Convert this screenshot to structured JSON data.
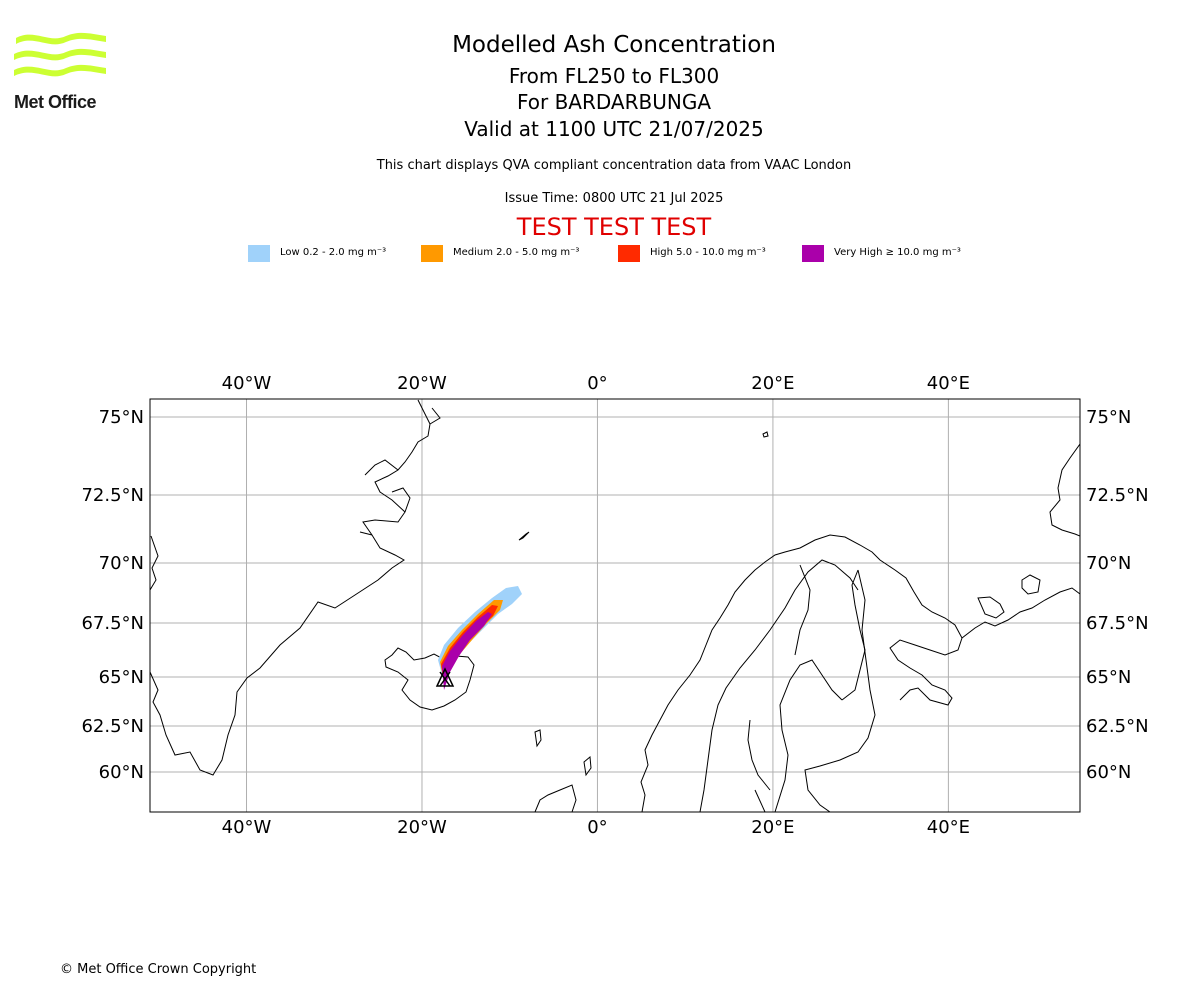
{
  "header": {
    "logo_text": "Met Office",
    "title": "Modelled Ash Concentration",
    "line2": "From FL250 to FL300",
    "line3": "For BARDARBUNGA",
    "line4": "Valid at 1100 UTC 21/07/2025",
    "description": "This chart displays QVA compliant concentration data from VAAC London",
    "issue_time": "Issue Time: 0800 UTC 21 Jul 2025",
    "test_banner": "TEST TEST TEST"
  },
  "colors": {
    "logo": "#ccff33",
    "test_banner": "#e00000",
    "low": "#a0d2fa",
    "medium": "#ff9900",
    "high": "#ff2a00",
    "very_high": "#aa00aa",
    "grid": "#b0b0b0"
  },
  "legend": [
    {
      "label": "Low 0.2 - 2.0 mg m⁻³",
      "color": "#a0d2fa"
    },
    {
      "label": "Medium 2.0 - 5.0 mg m⁻³",
      "color": "#ff9900"
    },
    {
      "label": "High 5.0 - 10.0 mg m⁻³",
      "color": "#ff2a00"
    },
    {
      "label": "Very High  ≥  10.0 mg m⁻³",
      "color": "#aa00aa"
    }
  ],
  "map": {
    "lon_range": [
      -51,
      55
    ],
    "lat_range": [
      58.5,
      76
    ],
    "lon_ticks": [
      {
        "value": -40,
        "label": "40°W"
      },
      {
        "value": -20,
        "label": "20°W"
      },
      {
        "value": 0,
        "label": "0°"
      },
      {
        "value": 20,
        "label": "20°E"
      },
      {
        "value": 40,
        "label": "40°E"
      }
    ],
    "lat_ticks": [
      {
        "value": 75,
        "label": "75°N"
      },
      {
        "value": 72.5,
        "label": "72.5°N"
      },
      {
        "value": 70,
        "label": "70°N"
      },
      {
        "value": 67.5,
        "label": "67.5°N"
      },
      {
        "value": 65,
        "label": "65°N"
      },
      {
        "value": 62.5,
        "label": "62.5°N"
      },
      {
        "value": 60,
        "label": "60°N"
      }
    ],
    "volcano": {
      "lon": -17.5,
      "lat": 64.63
    }
  },
  "footer": {
    "copyright": "© Met Office Crown Copyright"
  }
}
